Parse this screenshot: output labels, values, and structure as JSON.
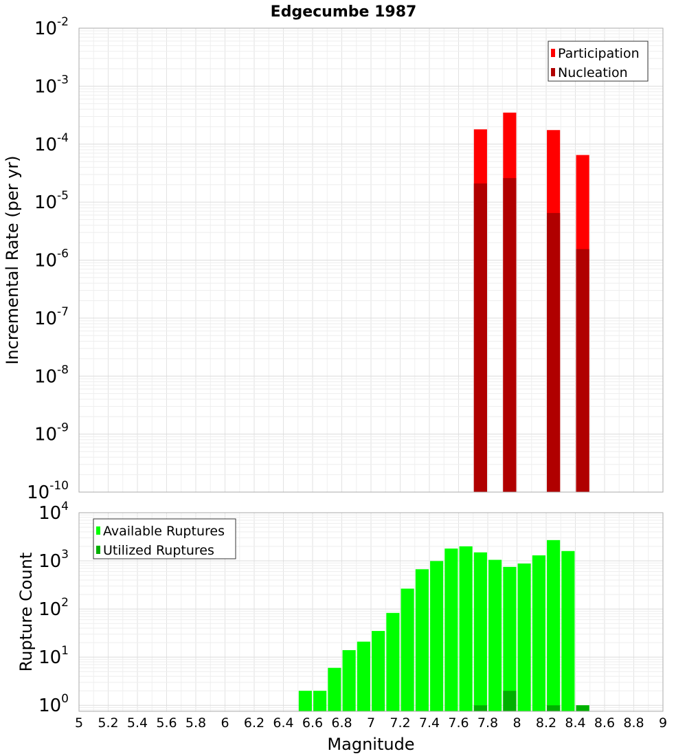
{
  "chart_data": [
    {
      "type": "bar",
      "title": "Edgecumbe 1987",
      "ylabel": "Incremental Rate (per yr)",
      "yscale": "log",
      "ylim": [
        1e-10,
        0.01
      ],
      "ytick_exponents": [
        -2,
        -3,
        -4,
        -5,
        -6,
        -7,
        -8,
        -9,
        -10
      ],
      "ytick_base": "10",
      "legend": {
        "placement": "top-right",
        "entries": [
          "Participation",
          "Nucleation"
        ]
      },
      "grid": true,
      "bar_width": 0.09,
      "series": [
        {
          "name": "Participation",
          "color": "#ff0000",
          "x": [
            7.75,
            7.95,
            8.25,
            8.45
          ],
          "values": [
            0.00018,
            0.00035,
            0.000175,
            6.5e-05
          ]
        },
        {
          "name": "Nucleation",
          "color": "#b00000",
          "x": [
            7.75,
            7.95,
            8.25,
            8.45
          ],
          "values": [
            2.1e-05,
            2.6e-05,
            6.5e-06,
            1.55e-06
          ]
        }
      ]
    },
    {
      "type": "bar",
      "xlabel": "Magnitude",
      "ylabel": "Rupture Count",
      "yscale": "log",
      "ylim": [
        0.75,
        10000
      ],
      "xlim": [
        5,
        9
      ],
      "ytick_exponents": [
        0,
        1,
        2,
        3,
        4
      ],
      "ytick_base": "10",
      "xticks": [
        "5",
        "5.2",
        "5.4",
        "5.6",
        "5.8",
        "6",
        "6.2",
        "6.4",
        "6.6",
        "6.8",
        "7",
        "7.2",
        "7.4",
        "7.6",
        "7.8",
        "8",
        "8.2",
        "8.4",
        "8.6",
        "8.8",
        "9"
      ],
      "legend": {
        "placement": "top-left",
        "entries": [
          "Available Ruptures",
          "Utilized Ruptures"
        ]
      },
      "grid": true,
      "bar_width": 0.09,
      "series": [
        {
          "name": "Available Ruptures",
          "color": "#00ff00",
          "x": [
            6.55,
            6.65,
            6.75,
            6.85,
            6.95,
            7.05,
            7.15,
            7.25,
            7.35,
            7.45,
            7.55,
            7.65,
            7.75,
            7.85,
            7.95,
            8.05,
            8.15,
            8.25,
            8.35,
            8.45
          ],
          "values": [
            2,
            2,
            6,
            14,
            21,
            35,
            83,
            265,
            670,
            990,
            1800,
            2000,
            1500,
            1050,
            750,
            880,
            1300,
            2700,
            1600,
            1
          ]
        },
        {
          "name": "Utilized Ruptures",
          "color": "#00b000",
          "x": [
            7.75,
            7.95,
            8.25,
            8.45
          ],
          "values": [
            1,
            2,
            1,
            1
          ]
        }
      ]
    }
  ]
}
